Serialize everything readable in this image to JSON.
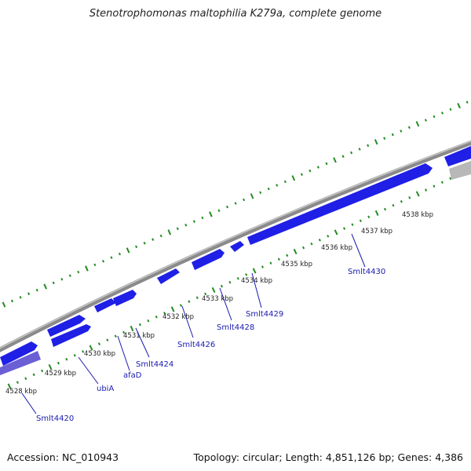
{
  "title": "Stenotrophomonas maltophilia K279a, complete genome",
  "accession_text": "Accession: NC_010943",
  "summary_text": "Topology: circular; Length: 4,851,126 bp; Genes: 4,386",
  "colors": {
    "gene_blue": "#1f1fe6",
    "gene_purple": "#6b5fd6",
    "gene_gray": "#b8b8b8",
    "backbone": "#8a8a8a",
    "ticks": "#228b22",
    "gene_label": "#1a1ab0"
  },
  "kbp_labels": [
    "4528 kbp",
    "4529 kbp",
    "4530 kbp",
    "4531 kbp",
    "4532 kbp",
    "4533 kbp",
    "4534 kbp",
    "4535 kbp",
    "4536 kbp",
    "4537 kbp",
    "4538 kbp"
  ],
  "gene_labels": [
    "Smlt4420",
    "ubiA",
    "afaD",
    "Smlt4424",
    "Smlt4426",
    "Smlt4428",
    "Smlt4429",
    "Smlt4430"
  ]
}
